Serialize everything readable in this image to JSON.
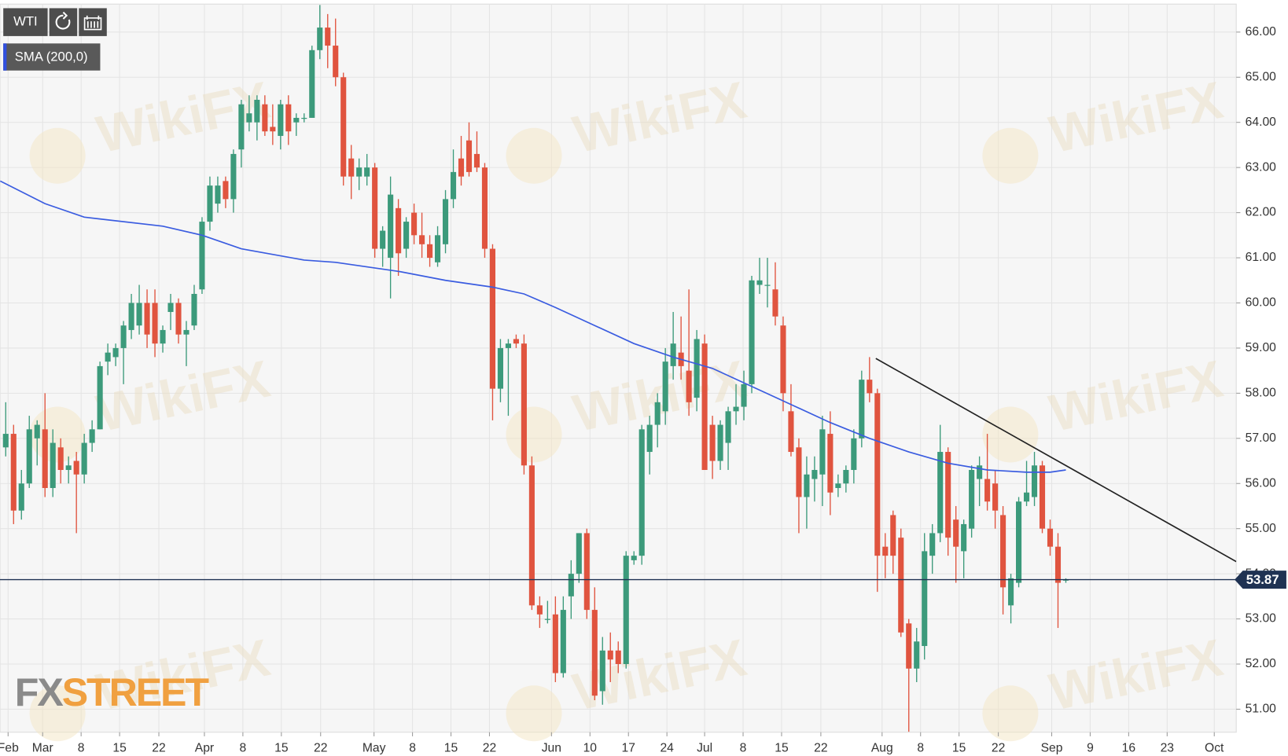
{
  "chart_data": {
    "type": "candlestick",
    "title": "WTI",
    "watermark": "WikiFX",
    "brand": {
      "prefix": "FX",
      "name": "STREET"
    },
    "x": [
      0,
      1,
      2,
      3,
      4,
      5,
      6,
      7,
      8,
      9,
      10,
      11,
      12,
      13,
      14,
      15,
      16,
      17,
      18,
      19,
      20,
      21,
      22,
      23,
      24,
      25,
      26,
      27,
      28,
      29,
      30,
      31,
      32,
      33,
      34,
      35,
      36,
      37,
      38,
      39,
      40,
      41,
      42,
      43,
      44,
      45,
      46,
      47,
      48,
      49,
      50,
      51,
      52,
      53,
      54,
      55,
      56,
      57,
      58,
      59,
      60,
      61,
      62,
      63,
      64,
      65,
      66,
      67,
      68,
      69,
      70,
      71,
      72,
      73,
      74,
      75,
      76,
      77,
      78,
      79,
      80,
      81,
      82,
      83,
      84,
      85,
      86,
      87,
      88,
      89,
      90,
      91,
      92,
      93,
      94,
      95,
      96,
      97,
      98,
      99,
      100,
      101,
      102,
      103,
      104,
      105,
      106,
      107,
      108,
      109,
      110,
      111,
      112,
      113,
      114,
      115,
      116,
      117,
      118,
      119,
      120,
      121,
      122,
      123,
      124,
      125,
      126,
      127,
      128,
      129,
      130,
      131,
      132,
      133,
      134,
      135
    ],
    "series": [
      {
        "name": "WTI",
        "up_color": "#3c9a7b",
        "down_color": "#e0543f",
        "open": [
          56.8,
          57.1,
          55.4,
          56.0,
          57.0,
          57.2,
          55.9,
          56.8,
          56.3,
          56.5,
          56.2,
          56.9,
          57.2,
          58.7,
          58.8,
          59.0,
          59.4,
          59.5,
          60.0,
          60.0,
          59.1,
          59.8,
          60.0,
          59.3,
          59.5,
          60.3,
          61.8,
          62.2,
          62.7,
          62.3,
          63.4,
          64.0,
          64.0,
          64.4,
          63.9,
          63.7,
          64.4,
          64.0,
          64.1,
          64.1,
          65.6,
          66.1,
          65.7,
          65.0,
          63.2,
          62.8,
          62.8,
          63.0,
          61.2,
          61.0,
          62.1,
          61.2,
          62.0,
          61.5,
          61.3,
          60.9,
          61.3,
          62.3,
          63.2,
          63.6,
          63.3,
          63.0,
          61.2,
          58.1,
          59.0,
          59.2,
          59.1,
          56.4,
          53.3,
          53.0,
          53.1,
          51.8,
          53.5,
          54.0,
          54.9,
          53.2,
          51.4,
          52.3,
          52.3,
          52.0,
          54.3,
          54.4,
          56.7,
          57.3,
          57.6,
          58.6,
          58.9,
          58.5,
          57.9,
          59.1,
          57.3,
          56.5,
          56.9,
          57.6,
          57.7,
          58.2,
          60.4,
          60.4,
          60.3,
          59.5,
          57.6,
          56.8,
          55.7,
          56.1,
          56.2,
          57.1,
          55.9,
          56.0,
          56.3,
          57.0,
          58.3,
          58.0,
          54.6,
          55.3,
          54.8,
          52.9,
          51.9,
          52.4,
          54.4,
          54.9,
          56.7,
          55.2,
          54.5,
          55.0,
          56.1,
          56.1,
          56.0,
          55.3,
          53.3,
          53.8,
          55.6,
          55.7,
          56.4,
          55.0,
          54.6,
          53.85
        ],
        "high": [
          57.8,
          57.3,
          56.3,
          57.5,
          57.4,
          58.0,
          57.2,
          57.0,
          56.6,
          56.7,
          57.1,
          57.4,
          58.7,
          59.1,
          59.1,
          59.6,
          60.2,
          60.4,
          60.3,
          60.3,
          59.5,
          60.2,
          60.1,
          59.6,
          60.4,
          61.9,
          62.8,
          62.8,
          62.8,
          63.4,
          64.5,
          64.6,
          64.6,
          64.6,
          64.4,
          64.5,
          64.6,
          64.2,
          64.2,
          65.7,
          66.6,
          66.4,
          66.3,
          65.1,
          63.5,
          63.2,
          63.3,
          63.1,
          61.7,
          62.8,
          62.3,
          61.9,
          62.2,
          62.0,
          61.5,
          61.7,
          62.5,
          63.4,
          63.7,
          64.0,
          63.8,
          63.1,
          61.3,
          59.2,
          59.2,
          59.3,
          59.3,
          56.6,
          53.5,
          53.4,
          53.5,
          53.5,
          54.3,
          54.9,
          55.0,
          53.7,
          52.6,
          52.7,
          52.5,
          54.5,
          54.5,
          57.3,
          57.5,
          58.0,
          59.0,
          59.8,
          59.7,
          60.3,
          59.4,
          59.3,
          57.5,
          57.4,
          57.7,
          58.2,
          58.5,
          60.6,
          61.0,
          61.0,
          60.9,
          59.7,
          58.2,
          57.0,
          56.6,
          56.6,
          57.5,
          57.6,
          56.2,
          56.4,
          57.2,
          58.5,
          58.8,
          58.1,
          54.9,
          55.4,
          55.0,
          53.0,
          52.8,
          54.9,
          55.1,
          57.3,
          56.8,
          55.5,
          55.2,
          56.4,
          56.6,
          57.1,
          56.3,
          55.5,
          54.0,
          55.7,
          56.5,
          56.7,
          56.5,
          55.2,
          54.9,
          53.9
        ],
        "low": [
          56.6,
          55.1,
          55.2,
          55.9,
          56.4,
          55.7,
          55.7,
          56.0,
          56.0,
          54.9,
          56.0,
          56.7,
          57.2,
          58.4,
          58.6,
          58.2,
          59.2,
          59.3,
          59.0,
          58.8,
          58.9,
          59.4,
          59.1,
          58.6,
          59.4,
          60.2,
          61.6,
          62.0,
          62.1,
          62.0,
          63.0,
          63.8,
          63.6,
          63.7,
          63.5,
          63.4,
          63.5,
          63.7,
          64.0,
          64.1,
          65.4,
          65.2,
          64.8,
          62.6,
          62.3,
          62.5,
          62.6,
          61.0,
          60.8,
          60.1,
          60.6,
          61.0,
          61.3,
          61.0,
          60.8,
          60.8,
          61.1,
          62.1,
          62.6,
          62.8,
          62.9,
          61.0,
          57.4,
          57.8,
          57.5,
          59.0,
          56.2,
          53.2,
          52.8,
          52.9,
          51.6,
          51.7,
          53.0,
          53.8,
          53.0,
          51.2,
          51.1,
          51.6,
          51.8,
          51.9,
          54.2,
          54.2,
          56.2,
          56.8,
          57.3,
          58.3,
          58.3,
          57.5,
          57.6,
          56.3,
          56.1,
          56.3,
          56.3,
          57.3,
          57.4,
          58.0,
          60.2,
          59.9,
          59.5,
          57.6,
          56.6,
          54.9,
          55.0,
          55.6,
          55.5,
          55.3,
          55.7,
          55.8,
          56.0,
          56.8,
          57.8,
          53.6,
          53.9,
          54.0,
          52.6,
          50.5,
          51.6,
          52.1,
          54.0,
          54.7,
          54.4,
          53.8,
          53.9,
          54.8,
          55.5,
          55.4,
          55.0,
          53.1,
          52.9,
          53.7,
          55.5,
          55.5,
          54.9,
          54.4,
          52.8,
          53.8
        ],
        "close": [
          57.1,
          55.4,
          56.0,
          57.2,
          57.3,
          55.9,
          56.9,
          56.3,
          56.4,
          56.2,
          56.9,
          57.2,
          58.6,
          58.9,
          59.0,
          59.5,
          60.0,
          60.0,
          59.3,
          59.1,
          59.4,
          60.0,
          59.3,
          59.4,
          60.2,
          61.8,
          62.6,
          62.6,
          62.3,
          63.3,
          64.4,
          64.2,
          64.5,
          63.8,
          63.8,
          64.4,
          63.8,
          64.1,
          64.1,
          65.6,
          66.1,
          65.7,
          65.0,
          62.8,
          62.8,
          63.0,
          63.0,
          61.2,
          61.6,
          62.4,
          61.1,
          61.8,
          61.5,
          61.3,
          61.0,
          61.5,
          62.3,
          62.9,
          62.8,
          62.9,
          63.0,
          61.2,
          58.1,
          59.0,
          59.1,
          59.1,
          56.4,
          53.3,
          53.1,
          53.0,
          51.8,
          53.2,
          54.0,
          54.9,
          53.2,
          51.3,
          52.3,
          52.1,
          52.0,
          54.4,
          54.4,
          57.2,
          57.3,
          57.8,
          58.7,
          59.1,
          58.6,
          57.8,
          59.2,
          56.3,
          56.5,
          57.3,
          57.6,
          57.7,
          58.2,
          60.5,
          60.5,
          60.4,
          59.7,
          58.0,
          56.7,
          55.7,
          56.2,
          56.3,
          57.2,
          55.8,
          56.0,
          56.3,
          57.0,
          58.3,
          58.0,
          54.4,
          54.4,
          54.4,
          52.7,
          51.9,
          52.5,
          54.5,
          54.9,
          56.7,
          54.8,
          54.6,
          55.1,
          56.3,
          56.4,
          55.6,
          55.4,
          53.7,
          53.9,
          55.6,
          55.8,
          56.4,
          55.0,
          54.6,
          53.8,
          53.87
        ]
      }
    ],
    "sma": {
      "name": "SMA (200,0)",
      "color": "#3a5ce0",
      "x": [
        -0.7,
        5,
        10,
        20,
        25,
        30,
        38,
        42,
        50,
        56,
        62,
        66,
        70,
        75,
        80,
        85,
        90,
        95,
        100,
        105,
        110,
        115,
        120,
        125,
        130,
        133,
        135
      ],
      "values": [
        62.7,
        62.2,
        61.9,
        61.7,
        61.5,
        61.2,
        60.95,
        60.9,
        60.7,
        60.5,
        60.35,
        60.2,
        59.9,
        59.5,
        59.1,
        58.8,
        58.55,
        58.15,
        57.75,
        57.35,
        57.0,
        56.7,
        56.45,
        56.3,
        56.25,
        56.25,
        56.3
      ]
    },
    "trendline": {
      "color": "#222222",
      "x": [
        110.8,
        156.7
      ],
      "values": [
        58.77,
        54.27
      ]
    },
    "last_price": {
      "value": 53.87,
      "label": "53.87",
      "color": "#1f3253"
    },
    "xlim": [
      -0.73,
      156.7
    ],
    "ylim": [
      50.49,
      66.62
    ],
    "grid": true,
    "yticks": [
      {
        "value": 51,
        "label": "51.00"
      },
      {
        "value": 52,
        "label": "52.00"
      },
      {
        "value": 53,
        "label": "53.00"
      },
      {
        "value": 54,
        "label": "54.00"
      },
      {
        "value": 55,
        "label": "55.00"
      },
      {
        "value": 56,
        "label": "56.00"
      },
      {
        "value": 57,
        "label": "57.00"
      },
      {
        "value": 58,
        "label": "58.00"
      },
      {
        "value": 59,
        "label": "59.00"
      },
      {
        "value": 60,
        "label": "60.00"
      },
      {
        "value": 61,
        "label": "61.00"
      },
      {
        "value": 62,
        "label": "62.00"
      },
      {
        "value": 63,
        "label": "63.00"
      },
      {
        "value": 64,
        "label": "64.00"
      },
      {
        "value": 65,
        "label": "65.00"
      },
      {
        "value": 66,
        "label": "66.00"
      }
    ],
    "xticks": [
      {
        "value": 0.3,
        "label": "Feb"
      },
      {
        "value": 4.7,
        "label": "Mar"
      },
      {
        "value": 9.6,
        "label": "8"
      },
      {
        "value": 14.5,
        "label": "15"
      },
      {
        "value": 19.5,
        "label": "22"
      },
      {
        "value": 25.3,
        "label": "Apr"
      },
      {
        "value": 30.2,
        "label": "8"
      },
      {
        "value": 35.1,
        "label": "15"
      },
      {
        "value": 40.1,
        "label": "22"
      },
      {
        "value": 46.9,
        "label": "May"
      },
      {
        "value": 51.8,
        "label": "8"
      },
      {
        "value": 56.7,
        "label": "15"
      },
      {
        "value": 61.6,
        "label": "22"
      },
      {
        "value": 69.5,
        "label": "Jun"
      },
      {
        "value": 74.4,
        "label": "10"
      },
      {
        "value": 79.3,
        "label": "17"
      },
      {
        "value": 84.2,
        "label": "24"
      },
      {
        "value": 89.0,
        "label": "Jul"
      },
      {
        "value": 93.9,
        "label": "8"
      },
      {
        "value": 98.8,
        "label": "15"
      },
      {
        "value": 103.8,
        "label": "22"
      },
      {
        "value": 111.6,
        "label": "Aug"
      },
      {
        "value": 116.5,
        "label": "8"
      },
      {
        "value": 121.4,
        "label": "15"
      },
      {
        "value": 126.4,
        "label": "22"
      },
      {
        "value": 133.2,
        "label": "Sep"
      },
      {
        "value": 138.1,
        "label": "9"
      },
      {
        "value": 143.0,
        "label": "16"
      },
      {
        "value": 147.9,
        "label": "23"
      },
      {
        "value": 153.9,
        "label": "Oct"
      }
    ]
  }
}
